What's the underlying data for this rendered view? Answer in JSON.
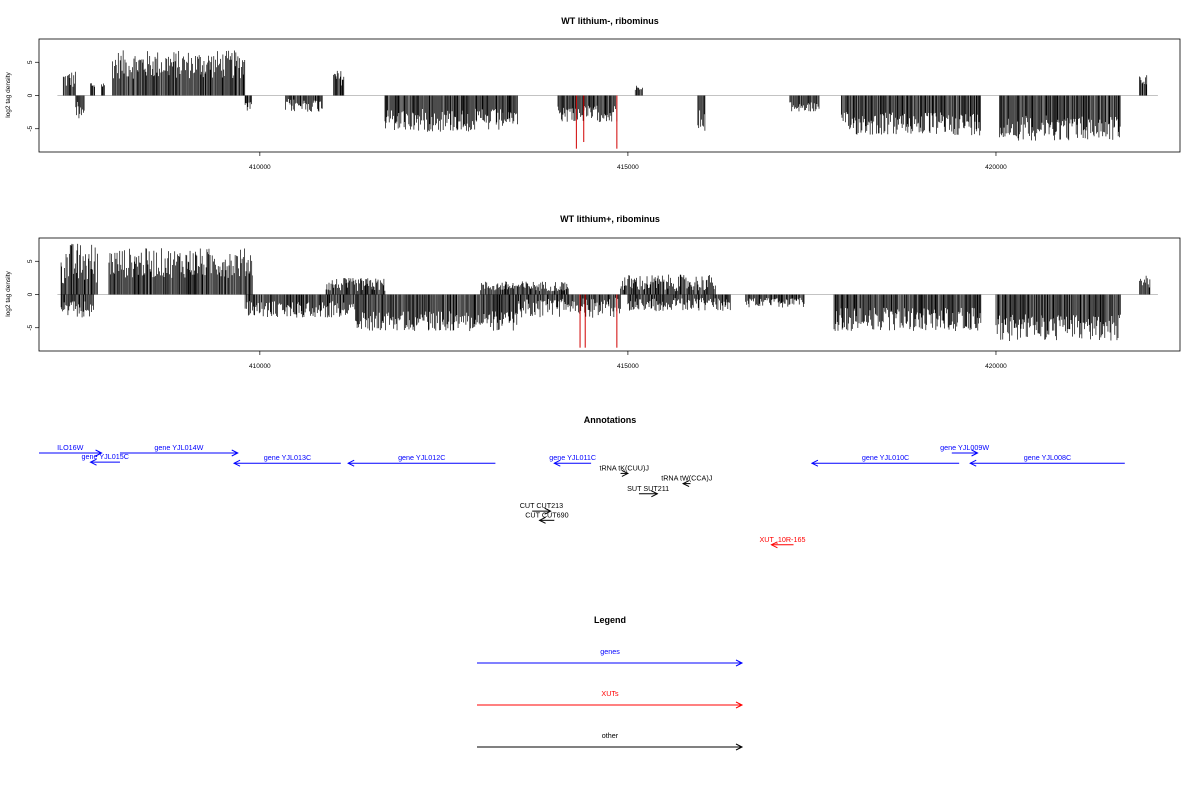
{
  "chart_data": [
    {
      "type": "bar",
      "title": "WT lithium-, ribominus",
      "xlabel": "",
      "ylabel": "log2 tag density",
      "xlim": [
        407000,
        422500
      ],
      "ylim": [
        -8.5,
        8.5
      ],
      "x_ticks": [
        410000,
        415000,
        420000
      ],
      "y_ticks": [
        5,
        0,
        -5
      ],
      "bar_color": "#000000",
      "highlight_color": "#d00000",
      "segments": [
        {
          "x0": 407330,
          "x1": 407500,
          "sign": 1,
          "min": 1.0,
          "max": 3.8
        },
        {
          "x0": 407500,
          "x1": 407620,
          "sign": -1,
          "min": 0.5,
          "max": 3.5
        },
        {
          "x0": 407700,
          "x1": 407760,
          "sign": 1,
          "min": 1.0,
          "max": 2.2
        },
        {
          "x0": 407850,
          "x1": 407900,
          "sign": 1,
          "min": 1.0,
          "max": 2.0
        },
        {
          "x0": 408000,
          "x1": 409800,
          "sign": 1,
          "min": 2.5,
          "max": 6.8
        },
        {
          "x0": 409800,
          "x1": 409900,
          "sign": -1,
          "min": 1.0,
          "max": 2.5
        },
        {
          "x0": 410350,
          "x1": 410850,
          "sign": -1,
          "min": 0.5,
          "max": 2.5
        },
        {
          "x0": 411000,
          "x1": 411150,
          "sign": 1,
          "min": 1.5,
          "max": 3.8
        },
        {
          "x0": 411700,
          "x1": 413300,
          "sign": -1,
          "min": 2.0,
          "max": 5.5
        },
        {
          "x0": 413300,
          "x1": 413500,
          "sign": -1,
          "min": 2.5,
          "max": 4.5
        },
        {
          "x0": 414050,
          "x1": 414850,
          "sign": -1,
          "min": 1.5,
          "max": 4.0
        },
        {
          "x0": 415100,
          "x1": 415200,
          "sign": 1,
          "min": 0.8,
          "max": 1.5
        },
        {
          "x0": 415950,
          "x1": 416050,
          "sign": -1,
          "min": 2.0,
          "max": 6.0
        },
        {
          "x0": 417200,
          "x1": 417600,
          "sign": -1,
          "min": 1.0,
          "max": 2.5
        },
        {
          "x0": 417900,
          "x1": 419800,
          "sign": -1,
          "min": 2.5,
          "max": 6.0
        },
        {
          "x0": 420050,
          "x1": 421700,
          "sign": -1,
          "min": 3.0,
          "max": 6.8
        },
        {
          "x0": 421950,
          "x1": 422050,
          "sign": 1,
          "min": 1.5,
          "max": 3.2
        }
      ],
      "highlights": [
        {
          "x": 414300,
          "y": -8.0
        },
        {
          "x": 414400,
          "y": -7.0
        },
        {
          "x": 414850,
          "y": -8.0
        }
      ]
    },
    {
      "type": "bar",
      "title": "WT lithium+, ribominus",
      "xlabel": "",
      "ylabel": "log2 tag density",
      "xlim": [
        407000,
        422500
      ],
      "ylim": [
        -8.5,
        8.5
      ],
      "x_ticks": [
        410000,
        415000,
        420000
      ],
      "y_ticks": [
        5,
        0,
        -5
      ],
      "bar_color": "#000000",
      "highlight_color": "#d00000",
      "segments": [
        {
          "x0": 407300,
          "x1": 407800,
          "sign": 1,
          "min": 1.5,
          "max": 7.8
        },
        {
          "x0": 407300,
          "x1": 407750,
          "sign": -1,
          "min": 1.0,
          "max": 3.5
        },
        {
          "x0": 407950,
          "x1": 409900,
          "sign": 1,
          "min": 2.5,
          "max": 7.0
        },
        {
          "x0": 409800,
          "x1": 411300,
          "sign": -1,
          "min": 1.0,
          "max": 3.5
        },
        {
          "x0": 410900,
          "x1": 411700,
          "sign": 1,
          "min": 0.5,
          "max": 2.5
        },
        {
          "x0": 411300,
          "x1": 413500,
          "sign": -1,
          "min": 2.5,
          "max": 5.5
        },
        {
          "x0": 413000,
          "x1": 414200,
          "sign": 1,
          "min": 0.5,
          "max": 2.0
        },
        {
          "x0": 413500,
          "x1": 414900,
          "sign": -1,
          "min": 0.5,
          "max": 3.5
        },
        {
          "x0": 414900,
          "x1": 416200,
          "sign": 1,
          "min": 0.5,
          "max": 3.0
        },
        {
          "x0": 415000,
          "x1": 416400,
          "sign": -1,
          "min": 0.5,
          "max": 2.5
        },
        {
          "x0": 416600,
          "x1": 417400,
          "sign": -1,
          "min": 0.5,
          "max": 2.0
        },
        {
          "x0": 417800,
          "x1": 419800,
          "sign": -1,
          "min": 2.0,
          "max": 5.5
        },
        {
          "x0": 420000,
          "x1": 421700,
          "sign": -1,
          "min": 3.0,
          "max": 7.0
        },
        {
          "x0": 421950,
          "x1": 422100,
          "sign": 1,
          "min": 0.8,
          "max": 3.2
        }
      ],
      "highlights": [
        {
          "x": 414350,
          "y": -8.0
        },
        {
          "x": 414420,
          "y": -8.0
        },
        {
          "x": 414850,
          "y": -8.0
        }
      ]
    }
  ],
  "annotations_panel": {
    "title": "Annotations",
    "xlim": [
      407000,
      422500
    ],
    "items": [
      {
        "label": "ILO16W",
        "color": "#0000ff",
        "x0": 407000,
        "x1": 407850,
        "dir": 1,
        "row": 0
      },
      {
        "label": "gene YJL015C",
        "color": "#0000ff",
        "x0": 407700,
        "x1": 408100,
        "dir": -1,
        "row": 0.9
      },
      {
        "label": "gene YJL014W",
        "color": "#0000ff",
        "x0": 408100,
        "x1": 409700,
        "dir": 1,
        "row": 0
      },
      {
        "label": "gene YJL013C",
        "color": "#0000ff",
        "x0": 409650,
        "x1": 411100,
        "dir": -1,
        "row": 1
      },
      {
        "label": "gene YJL012C",
        "color": "#0000ff",
        "x0": 411200,
        "x1": 413200,
        "dir": -1,
        "row": 1
      },
      {
        "label": "gene YJL011C",
        "color": "#0000ff",
        "x0": 414000,
        "x1": 414500,
        "dir": -1,
        "row": 1
      },
      {
        "label": "tRNA tK(CUU)J",
        "color": "#000000",
        "x0": 414900,
        "x1": 415000,
        "dir": 1,
        "row": 2
      },
      {
        "label": "tRNA tW(CCA)J",
        "color": "#000000",
        "x0": 415750,
        "x1": 415850,
        "dir": -1,
        "row": 3
      },
      {
        "label": "SUT SUT211",
        "color": "#000000",
        "x0": 415150,
        "x1": 415400,
        "dir": 1,
        "row": 4
      },
      {
        "label": "CUT CUT213",
        "color": "#000000",
        "x0": 413700,
        "x1": 413950,
        "dir": 1,
        "row": 5.7
      },
      {
        "label": "CUT CUT690",
        "color": "#000000",
        "x0": 413800,
        "x1": 414000,
        "dir": -1,
        "row": 6.6
      },
      {
        "label": "XUT_10R-165",
        "color": "#ff0000",
        "x0": 416950,
        "x1": 417250,
        "dir": -1,
        "row": 9
      },
      {
        "label": "gene YJL010C",
        "color": "#0000ff",
        "x0": 417500,
        "x1": 419500,
        "dir": -1,
        "row": 1
      },
      {
        "label": "gene YJL009W",
        "color": "#0000ff",
        "x0": 419400,
        "x1": 419750,
        "dir": 1,
        "row": 0
      },
      {
        "label": "gene YJL008C",
        "color": "#0000ff",
        "x0": 419650,
        "x1": 421750,
        "dir": -1,
        "row": 1
      }
    ]
  },
  "legend": {
    "title": "Legend",
    "items": [
      {
        "label": "genes",
        "color": "#0000ff"
      },
      {
        "label": "XUTs",
        "color": "#ff0000"
      },
      {
        "label": "other",
        "color": "#000000"
      }
    ]
  }
}
